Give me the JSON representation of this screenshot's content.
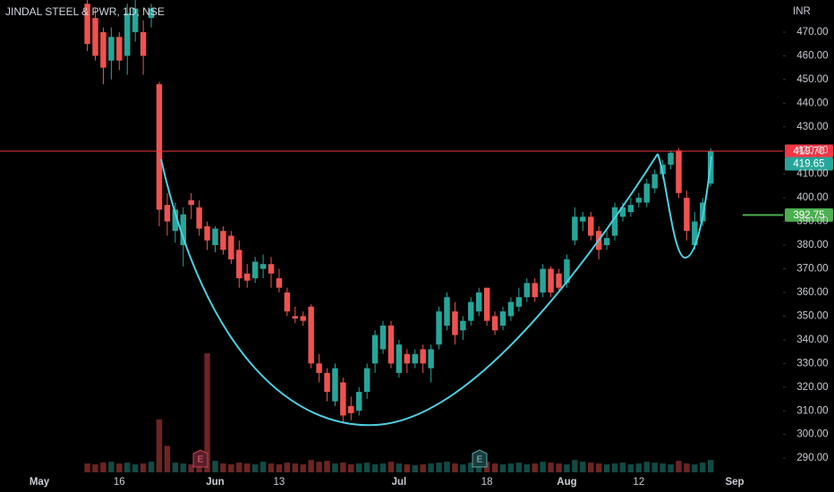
{
  "chart_data": {
    "type": "candlestick",
    "title": "JINDAL STEEL & PWR, 1D, NSE",
    "currency": "INR",
    "categories": [
      "May",
      null,
      null,
      null,
      null,
      null,
      null,
      null,
      null,
      null,
      "16",
      null,
      null,
      null,
      null,
      null,
      null,
      null,
      null,
      null,
      null,
      null,
      "Jun",
      null,
      null,
      null,
      null,
      null,
      null,
      null,
      "13",
      null,
      null,
      null,
      null,
      null,
      null,
      null,
      null,
      null,
      null,
      null,
      null,
      null,
      null,
      "Jul",
      null,
      null,
      null,
      null,
      null,
      null,
      null,
      null,
      null,
      null,
      "18",
      null,
      null,
      null,
      null,
      null,
      null,
      null,
      null,
      null,
      "Aug",
      null,
      null,
      null,
      null,
      null,
      null,
      null,
      null,
      "12",
      null,
      null,
      null,
      null,
      null,
      null,
      null,
      null,
      null,
      null,
      null,
      "Sep"
    ],
    "open": [
      null,
      null,
      null,
      null,
      null,
      null,
      482,
      476,
      470,
      458,
      468,
      460,
      470,
      470,
      476,
      448,
      397,
      386,
      380,
      399,
      396,
      388,
      380,
      386,
      384,
      378,
      368,
      366,
      370,
      372,
      366,
      360,
      350,
      350,
      354,
      330,
      326,
      314,
      322,
      312,
      310,
      318,
      330,
      336,
      346,
      326,
      334,
      330,
      336,
      328,
      338,
      346,
      352,
      344,
      348,
      352,
      362,
      350,
      346,
      350,
      354,
      358,
      364,
      360,
      370,
      368,
      364,
      382,
      390,
      392,
      386,
      380,
      384,
      392,
      394,
      398,
      398,
      404,
      410,
      414,
      420,
      400,
      380,
      390,
      406,
      null,
      null,
      null
    ],
    "high": [
      null,
      null,
      null,
      null,
      null,
      null,
      484,
      480,
      472,
      472,
      470,
      482,
      484,
      475,
      482,
      449,
      402,
      398,
      396,
      402,
      399,
      390,
      388,
      388,
      386,
      382,
      372,
      375,
      376,
      375,
      370,
      362,
      354,
      352,
      355,
      334,
      328,
      330,
      324,
      316,
      320,
      330,
      344,
      348,
      348,
      340,
      336,
      336,
      338,
      338,
      354,
      360,
      356,
      350,
      358,
      362,
      362,
      352,
      354,
      358,
      362,
      366,
      366,
      372,
      371,
      370,
      376,
      396,
      394,
      394,
      388,
      386,
      398,
      398,
      400,
      402,
      408,
      412,
      416,
      420,
      421,
      403,
      394,
      400,
      421,
      null,
      null,
      null
    ],
    "low": [
      null,
      null,
      null,
      null,
      null,
      null,
      462,
      458,
      448,
      450,
      454,
      452,
      466,
      452,
      472,
      388,
      384,
      381,
      371,
      391,
      384,
      378,
      377,
      376,
      372,
      362,
      362,
      364,
      366,
      362,
      360,
      350,
      347,
      346,
      328,
      322,
      314,
      312,
      305,
      306,
      308,
      315,
      326,
      334,
      328,
      324,
      326,
      328,
      326,
      322,
      336,
      344,
      338,
      340,
      346,
      350,
      346,
      342,
      344,
      348,
      352,
      356,
      356,
      358,
      358,
      361,
      362,
      380,
      386,
      382,
      374,
      378,
      382,
      390,
      392,
      396,
      396,
      402,
      408,
      412,
      400,
      382,
      378,
      388,
      405,
      null,
      null,
      null
    ],
    "close": [
      null,
      null,
      null,
      null,
      null,
      null,
      465,
      460,
      455,
      468,
      458,
      478,
      480,
      460,
      480,
      395,
      390,
      395,
      393,
      397,
      387,
      382,
      387,
      378,
      374,
      366,
      365,
      373,
      372,
      368,
      362,
      352,
      349,
      348,
      330,
      326,
      318,
      328,
      308,
      309,
      318,
      328,
      342,
      346,
      330,
      338,
      330,
      334,
      330,
      336,
      352,
      358,
      342,
      348,
      356,
      360,
      348,
      344,
      352,
      356,
      358,
      364,
      358,
      370,
      360,
      362,
      374,
      392,
      392,
      384,
      378,
      383,
      396,
      396,
      397,
      400,
      406,
      410,
      414,
      419,
      402,
      386,
      390,
      398,
      419.65,
      null,
      null,
      null
    ],
    "volume": [
      null,
      null,
      null,
      null,
      null,
      null,
      10,
      9,
      11,
      12,
      10,
      11,
      9,
      10,
      12,
      60,
      30,
      11,
      10,
      9,
      12,
      135,
      13,
      10,
      9,
      11,
      10,
      9,
      12,
      10,
      9,
      11,
      10,
      9,
      14,
      12,
      13,
      10,
      11,
      9,
      10,
      11,
      9,
      10,
      12,
      10,
      9,
      8,
      9,
      10,
      11,
      12,
      10,
      9,
      11,
      10,
      12,
      10,
      9,
      10,
      11,
      9,
      10,
      12,
      11,
      10,
      9,
      14,
      12,
      11,
      10,
      9,
      10,
      11,
      9,
      10,
      12,
      11,
      10,
      9,
      13,
      10,
      9,
      11,
      14,
      null,
      null,
      null
    ],
    "up_color": "#26a69a",
    "down_color": "#ef5350",
    "ylim": [
      284,
      483.6
    ],
    "yticks": [
      {
        "value": 290,
        "label": "290.00"
      },
      {
        "value": 300,
        "label": "300.00"
      },
      {
        "value": 310,
        "label": "310.00"
      },
      {
        "value": 320,
        "label": "320.00"
      },
      {
        "value": 330,
        "label": "330.00"
      },
      {
        "value": 340,
        "label": "340.00"
      },
      {
        "value": 350,
        "label": "350.00"
      },
      {
        "value": 360,
        "label": "360.00"
      },
      {
        "value": 370,
        "label": "370.00"
      },
      {
        "value": 380,
        "label": "380.00"
      },
      {
        "value": 390,
        "label": "390.00"
      },
      {
        "value": 400,
        "label": "400.00"
      },
      {
        "value": 410,
        "label": "410.00"
      },
      {
        "value": 420,
        "label": "420.00"
      },
      {
        "value": 430,
        "label": "430.00"
      },
      {
        "value": 440,
        "label": "440.00"
      },
      {
        "value": 450,
        "label": "450.00"
      },
      {
        "value": 460,
        "label": "460.00"
      },
      {
        "value": 470,
        "label": "470.00"
      }
    ],
    "grid": false,
    "price_lines": [
      {
        "value": 419.7,
        "label": "419.70",
        "color": "#f23645",
        "full": true
      },
      {
        "value": 419.65,
        "label": "419.65",
        "color": "#26a69a",
        "full": false
      },
      {
        "value": 392.75,
        "label": "392.75",
        "color": "#4caf50",
        "full": false
      }
    ],
    "events": [
      "E",
      "E"
    ]
  }
}
